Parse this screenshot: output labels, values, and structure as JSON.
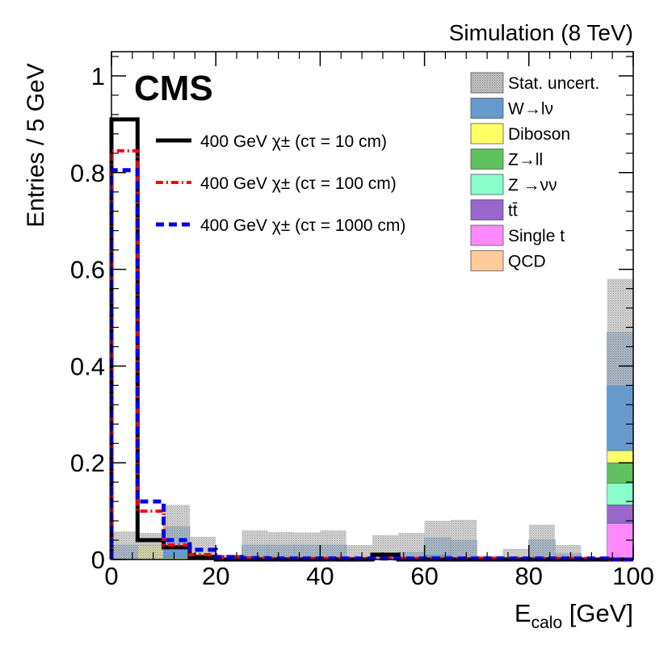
{
  "chart_data": {
    "type": "bar",
    "subtype": "stacked-histogram-with-step-overlays",
    "header_right": "Simulation (8 TeV)",
    "experiment_label": "CMS",
    "xlabel": {
      "main": "E",
      "sub": "calo",
      "unit": " [GeV]"
    },
    "ylabel": "Entries / 5 GeV",
    "xlim": [
      0,
      100
    ],
    "ylim": [
      0,
      1.05
    ],
    "bin_width": 5,
    "bin_edges": [
      0,
      5,
      10,
      15,
      20,
      25,
      30,
      35,
      40,
      45,
      50,
      55,
      60,
      65,
      70,
      75,
      80,
      85,
      90,
      95,
      100
    ],
    "xticks": [
      "0",
      "20",
      "40",
      "60",
      "80",
      "100"
    ],
    "xtick_values": [
      0,
      20,
      40,
      60,
      80,
      100
    ],
    "yticks": [
      "0",
      "0.2",
      "0.4",
      "0.6",
      "0.8",
      "1"
    ],
    "ytick_values": [
      0,
      0.2,
      0.4,
      0.6,
      0.8,
      1
    ],
    "colors": {
      "stat_fill": "#bdbdbd",
      "wlnu": "#6699cc",
      "diboson": "#ffff66",
      "zll": "#5fc25f",
      "znunu": "#88ffcc",
      "ttbar": "#9966cc",
      "singlet": "#ff88ff",
      "qcd": "#ffcc99",
      "sig10": "#000000",
      "sig100": "#ff0000",
      "sig1000": "#0000ee"
    },
    "legend_background": {
      "placement": "top-right",
      "entries": [
        {
          "key": "stat",
          "label": "Stat. uncert."
        },
        {
          "key": "wlnu",
          "label": "W→lν"
        },
        {
          "key": "diboson",
          "label": "Diboson"
        },
        {
          "key": "zll",
          "label": "Z→ll"
        },
        {
          "key": "znunu",
          "label": "Z →νν"
        },
        {
          "key": "ttbar",
          "label": "tt̄"
        },
        {
          "key": "singlet",
          "label": "Single t"
        },
        {
          "key": "qcd",
          "label": "QCD"
        }
      ]
    },
    "legend_signal": {
      "placement": "top-left",
      "entries": [
        {
          "key": "sig10",
          "label": "400 GeV χ± (cτ = 10 cm)",
          "style": "solid"
        },
        {
          "key": "sig100",
          "label": "400 GeV χ± (cτ = 100 cm)",
          "style": "dashdot"
        },
        {
          "key": "sig1000",
          "label": "400 GeV χ± (cτ = 1000 cm)",
          "style": "dashed"
        }
      ]
    },
    "stack_order": [
      "qcd",
      "singlet",
      "ttbar",
      "znunu",
      "zll",
      "diboson",
      "wlnu"
    ],
    "background_series": {
      "qcd": [
        0,
        0,
        0,
        0,
        0,
        0,
        0,
        0,
        0,
        0,
        0,
        0,
        0,
        0,
        0,
        0,
        0,
        0,
        0,
        0
      ],
      "singlet": [
        0,
        0,
        0,
        0,
        0,
        0,
        0,
        0,
        0,
        0,
        0,
        0,
        0,
        0,
        0,
        0,
        0,
        0,
        0,
        0.075
      ],
      "ttbar": [
        0,
        0,
        0,
        0,
        0,
        0,
        0,
        0,
        0,
        0,
        0,
        0,
        0,
        0,
        0,
        0,
        0,
        0,
        0,
        0.038
      ],
      "znunu": [
        0,
        0,
        0,
        0,
        0,
        0,
        0,
        0,
        0,
        0,
        0,
        0,
        0,
        0,
        0,
        0,
        0,
        0,
        0,
        0.045
      ],
      "zll": [
        0,
        0,
        0,
        0,
        0,
        0,
        0,
        0,
        0,
        0,
        0,
        0,
        0,
        0,
        0,
        0,
        0,
        0,
        0,
        0.042
      ],
      "diboson": [
        0,
        0.03,
        0.003,
        0,
        0,
        0,
        0,
        0,
        0,
        0,
        0,
        0,
        0,
        0,
        0,
        0,
        0.003,
        0,
        0,
        0.025
      ],
      "wlnu": [
        0.03,
        0,
        0.065,
        0.01,
        0.003,
        0.03,
        0.03,
        0.03,
        0.03,
        0.005,
        0.008,
        0.015,
        0.045,
        0.04,
        0.003,
        0.005,
        0.038,
        0.012,
        0,
        0.245
      ]
    },
    "stat_uncertainty": {
      "low": [
        0.002,
        0.0,
        0.02,
        0.0,
        0.0,
        0.002,
        0.004,
        0.004,
        0.003,
        0.0,
        0.0,
        0.0,
        0.01,
        0.005,
        0.0,
        0.0,
        0.005,
        0.0,
        0.0,
        0.36
      ],
      "high": [
        0.058,
        0.055,
        0.113,
        0.047,
        0.01,
        0.06,
        0.057,
        0.056,
        0.06,
        0.03,
        0.05,
        0.055,
        0.08,
        0.082,
        0.008,
        0.022,
        0.072,
        0.03,
        0.002,
        0.58
      ]
    },
    "signal_series": {
      "sig10": [
        0.91,
        0.04,
        0.025,
        0.005,
        0,
        0,
        0,
        0,
        0,
        0,
        0.01,
        0,
        0,
        0,
        0,
        0,
        0,
        0,
        0,
        0
      ],
      "sig100": [
        0.845,
        0.1,
        0.03,
        0.01,
        0.005,
        0.003,
        0.002,
        0.002,
        0.002,
        0.002,
        0.002,
        0.002,
        0.002,
        0.002,
        0.002,
        0.002,
        0.002,
        0.002,
        0.002,
        0
      ],
      "sig1000": [
        0.805,
        0.12,
        0.04,
        0.02,
        0.005,
        0.003,
        0.002,
        0.002,
        0.002,
        0.002,
        0.002,
        0.002,
        0.002,
        0.002,
        0.002,
        0.002,
        0.002,
        0.002,
        0.002,
        0
      ]
    }
  }
}
